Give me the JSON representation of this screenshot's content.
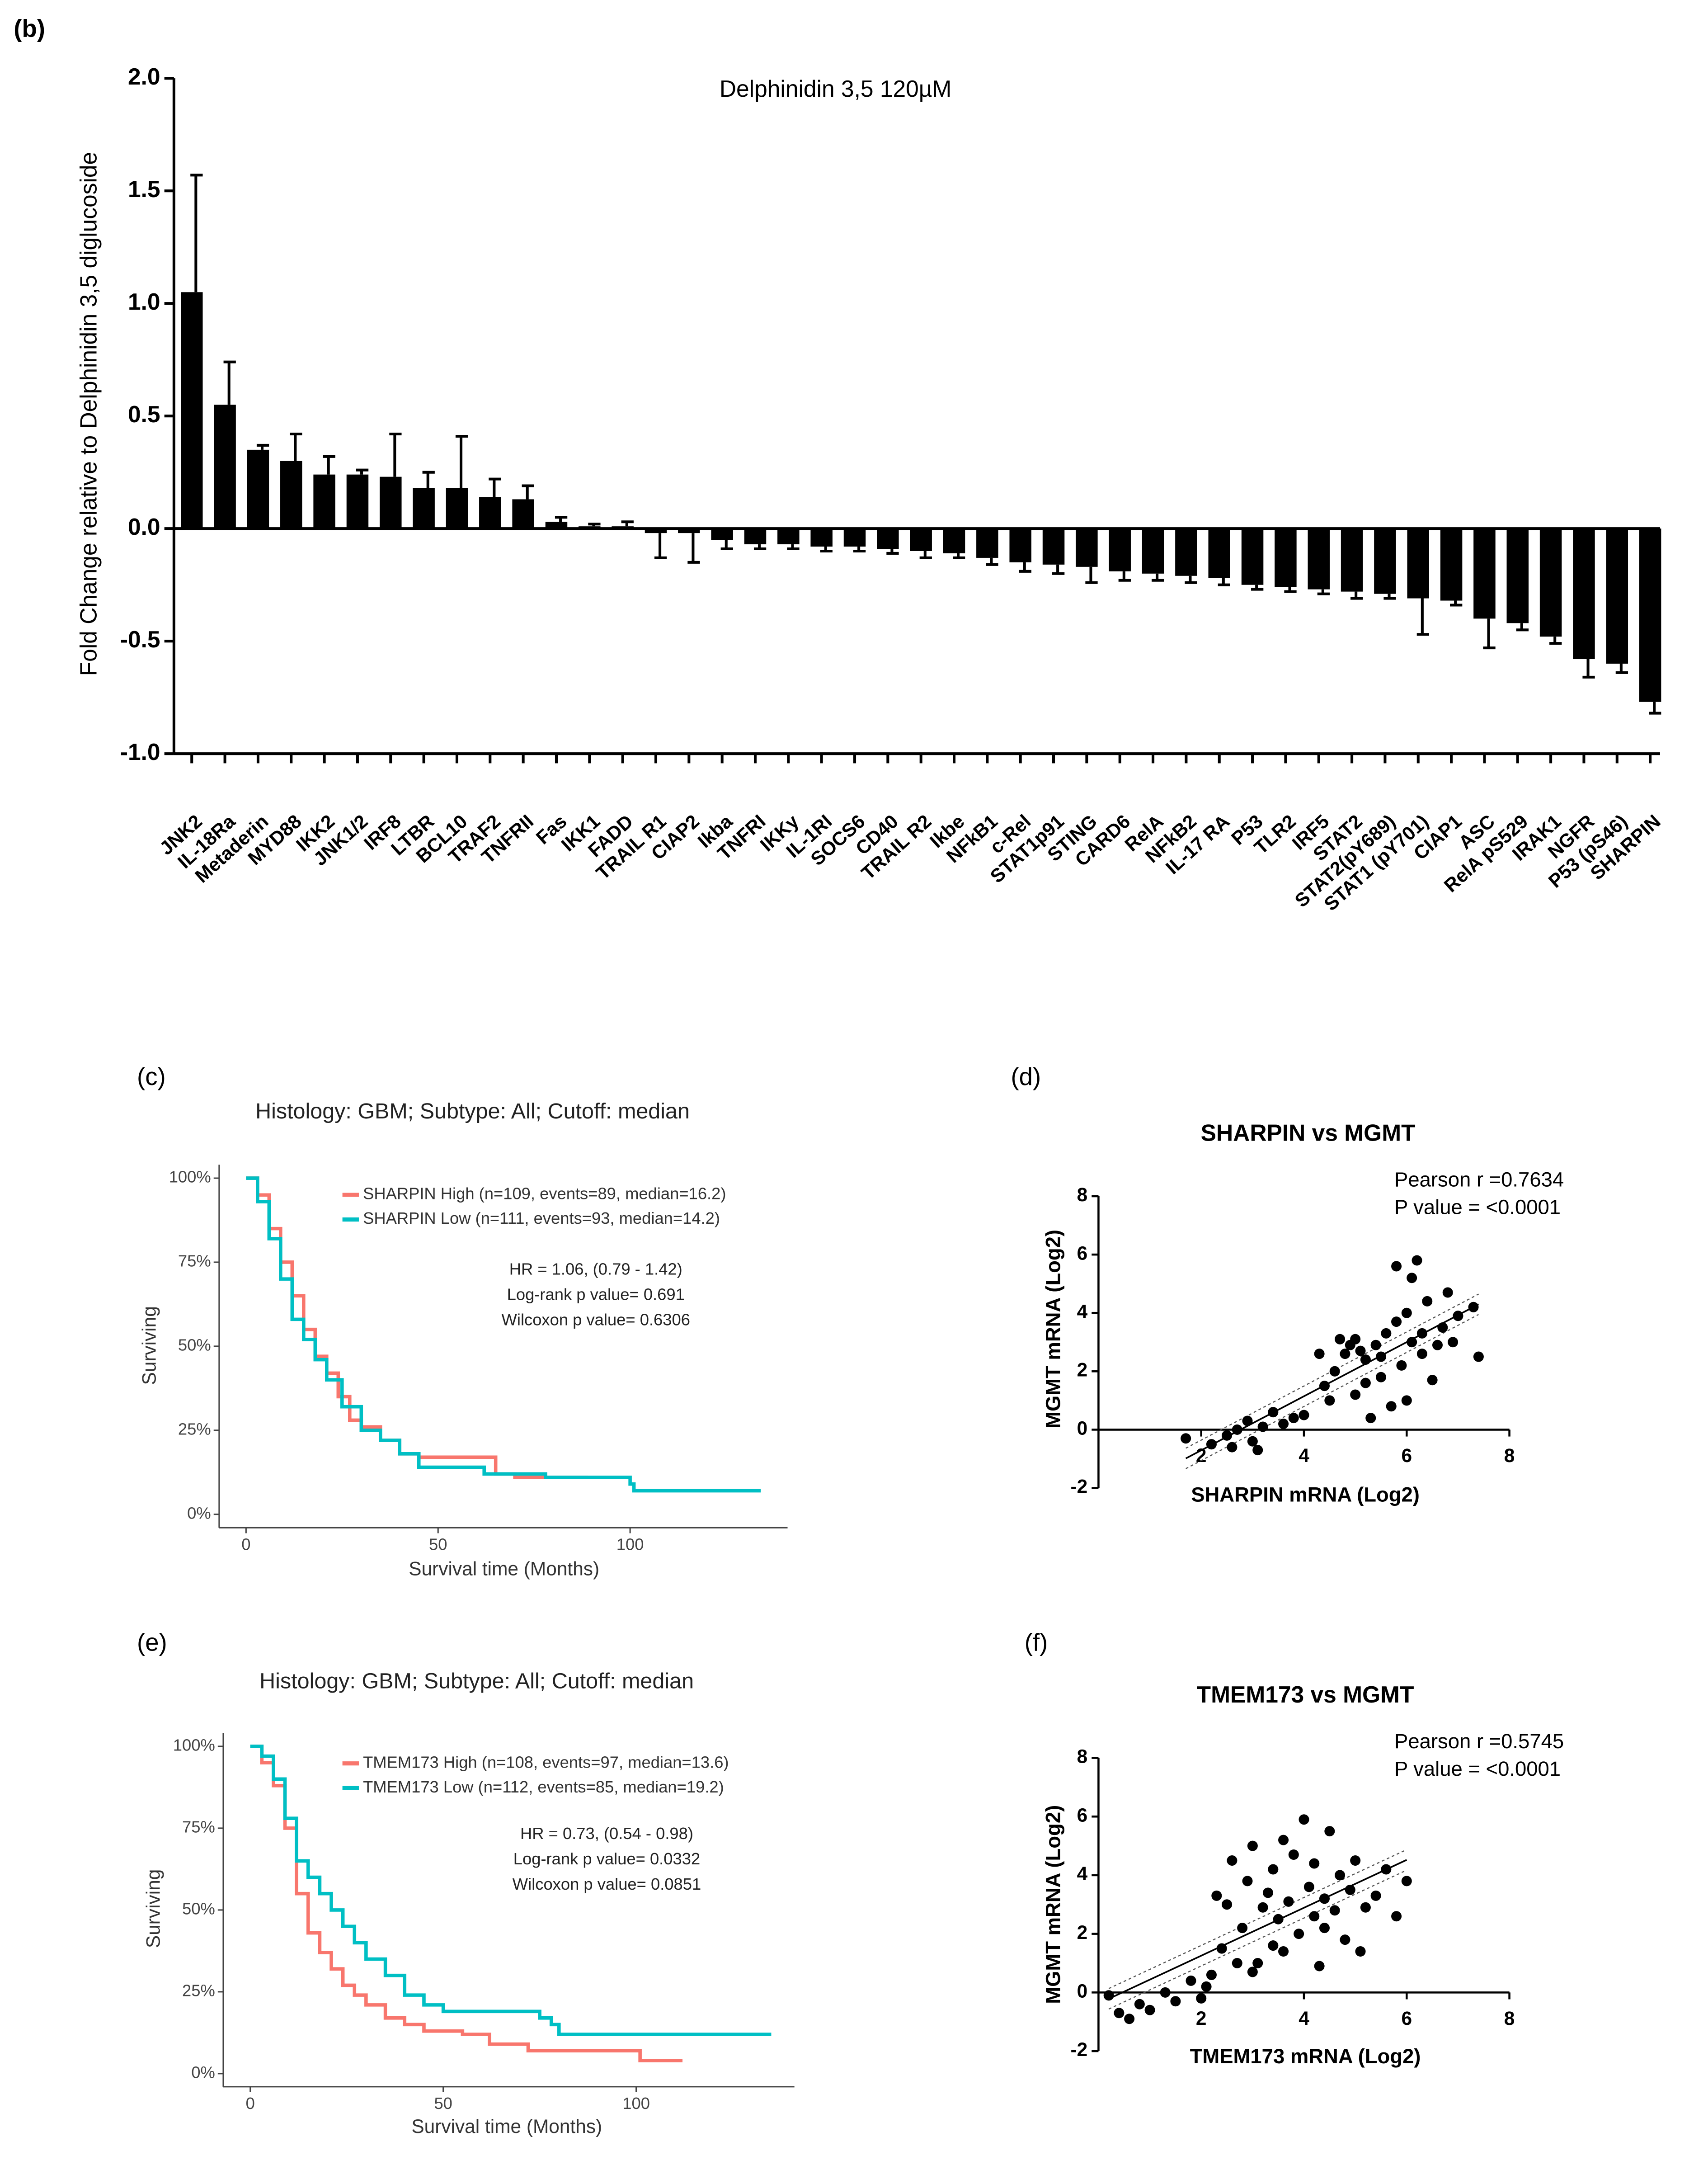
{
  "chart_data": [
    {
      "type": "bar",
      "label": "(b)",
      "title": "Delphinidin 3,5 120µM",
      "y_label": "Fold Change relative to Delphinidin 3,5 diglucoside",
      "categories": [
        "JNK2",
        "IL-18Ra",
        "Metaderin",
        "MYD88",
        "IKK2",
        "JNK1/2",
        "IRF8",
        "LTBR",
        "BCL10",
        "TRAF2",
        "TNFRII",
        "Fas",
        "IKK1",
        "FADD",
        "TRAIL R1",
        "CIAP2",
        "Ikba",
        "TNFRI",
        "IKKy",
        "IL-1RI",
        "SOCS6",
        "CD40",
        "TRAIL R2",
        "Ikbe",
        "NFkB1",
        "c-Rel",
        "STAT1p91",
        "STING",
        "CARD6",
        "RelA",
        "NFkB2",
        "IL-17 RA",
        "P53",
        "TLR2",
        "IRF5",
        "STAT2",
        "STAT2(pY689)",
        "STAT1 (pY701)",
        "CIAP1",
        "ASC",
        "RelA pS529",
        "IRAK1",
        "NGFR",
        "P53 (pS46)",
        "SHARPIN"
      ],
      "values": [
        1.05,
        0.55,
        0.35,
        0.3,
        0.24,
        0.24,
        0.23,
        0.18,
        0.18,
        0.14,
        0.13,
        0.03,
        0.01,
        0.01,
        -0.02,
        -0.02,
        -0.05,
        -0.07,
        -0.07,
        -0.08,
        -0.08,
        -0.09,
        -0.1,
        -0.11,
        -0.13,
        -0.15,
        -0.16,
        -0.17,
        -0.19,
        -0.2,
        -0.21,
        -0.22,
        -0.25,
        -0.26,
        -0.27,
        -0.28,
        -0.29,
        -0.31,
        -0.32,
        -0.4,
        -0.42,
        -0.48,
        -0.58,
        -0.6,
        -0.77
      ],
      "errors": [
        0.52,
        0.19,
        0.02,
        0.12,
        0.08,
        0.02,
        0.19,
        0.07,
        0.23,
        0.08,
        0.06,
        0.02,
        0.01,
        0.02,
        0.11,
        0.13,
        0.04,
        0.02,
        0.02,
        0.02,
        0.02,
        0.02,
        0.03,
        0.02,
        0.03,
        0.04,
        0.04,
        0.07,
        0.04,
        0.03,
        0.03,
        0.03,
        0.02,
        0.02,
        0.02,
        0.03,
        0.02,
        0.16,
        0.02,
        0.13,
        0.03,
        0.03,
        0.08,
        0.04,
        0.05
      ],
      "color": "#000000",
      "ylim": [
        -1,
        2
      ],
      "yticks": [
        {
          "value": -1,
          "label": "-1.0"
        },
        {
          "value": -0.5,
          "label": "-0.5"
        },
        {
          "value": 0,
          "label": "0.0"
        },
        {
          "value": 0.5,
          "label": "0.5"
        },
        {
          "value": 1,
          "label": "1.0"
        },
        {
          "value": 1.5,
          "label": "1.5"
        },
        {
          "value": 2,
          "label": "2.0"
        }
      ]
    },
    {
      "type": "step",
      "label": "(c)",
      "title": "Histology: GBM; Subtype: All; Cutoff: median",
      "x_label": "Survival time (Months)",
      "y_label": "Surviving",
      "annotations": [
        "HR = 1.06, (0.79 - 1.42)",
        "Log-rank p value= 0.691",
        "Wilcoxon p value= 0.6306"
      ],
      "xlim": [
        -7,
        141
      ],
      "xticks": [
        0,
        50,
        100
      ],
      "ylim": [
        -4,
        104
      ],
      "yticks": [
        {
          "value": 0,
          "label": "0%"
        },
        {
          "value": 25,
          "label": "25%"
        },
        {
          "value": 50,
          "label": "50%"
        },
        {
          "value": 75,
          "label": "75%"
        },
        {
          "value": 100,
          "label": "100%"
        }
      ],
      "series": [
        {
          "name": "SHARPIN High (n=109, events=89, median=16.2)",
          "color": "#f8766d",
          "x": [
            0,
            3,
            6,
            9,
            12,
            15,
            18,
            21,
            24,
            27,
            30,
            35,
            40,
            45,
            60,
            65,
            70,
            89
          ],
          "values": [
            100,
            95,
            85,
            75,
            65,
            55,
            47,
            42,
            35,
            28,
            26,
            22,
            18,
            17,
            17,
            12,
            11,
            11
          ]
        },
        {
          "name": "SHARPIN Low (n=111, events=93, median=14.2)",
          "color": "#00bfc4",
          "x": [
            0,
            3,
            6,
            9,
            12,
            15,
            18,
            21,
            25,
            30,
            35,
            40,
            45,
            60,
            62,
            78,
            100,
            101,
            134
          ],
          "values": [
            100,
            93,
            82,
            70,
            58,
            52,
            46,
            40,
            32,
            25,
            22,
            18,
            14,
            14,
            12,
            11,
            9,
            7,
            7
          ]
        }
      ]
    },
    {
      "type": "scatter",
      "label": "(d)",
      "title": "SHARPIN vs MGMT",
      "x_label": "SHARPIN mRNA (Log2)",
      "y_label": "MGMT mRNA (Log2)",
      "annotations": [
        "Pearson r =0.7634",
        "P value = <0.0001"
      ],
      "xlim": [
        0,
        8
      ],
      "xticks": [
        2,
        4,
        6,
        8
      ],
      "ylim": [
        -2,
        8
      ],
      "yticks": [
        -2,
        0,
        2,
        4,
        6,
        8
      ],
      "color": "#000000",
      "x": [
        1.7,
        2.2,
        2.5,
        2.7,
        2.9,
        3.0,
        3.2,
        2.6,
        3.4,
        3.6,
        3.1,
        4.0,
        4.4,
        4.6,
        4.8,
        5.0,
        5.2,
        5.4,
        5.0,
        5.5,
        5.6,
        5.8,
        5.9,
        6.0,
        6.1,
        6.2,
        6.4,
        6.3,
        6.5,
        6.7,
        6.8,
        7.0,
        7.4,
        7.3,
        5.3,
        5.7,
        4.9,
        5.1,
        6.6,
        6.0,
        5.5,
        4.3,
        4.7,
        6.9,
        5.8,
        6.3,
        5.2,
        6.1,
        4.5,
        3.8
      ],
      "values": [
        -0.3,
        -0.5,
        -0.2,
        0,
        0.3,
        -0.4,
        0.1,
        -0.6,
        0.6,
        0.2,
        -0.7,
        0.5,
        1.5,
        2.0,
        2.6,
        3.1,
        2.4,
        2.9,
        1.2,
        1.8,
        3.3,
        3.7,
        2.2,
        4.0,
        5.2,
        5.8,
        4.4,
        2.6,
        1.7,
        3.5,
        4.7,
        3.9,
        2.5,
        4.2,
        0.4,
        0.8,
        2.9,
        2.7,
        2.9,
        1.0,
        2.5,
        2.6,
        3.1,
        3.0,
        5.6,
        3.3,
        1.6,
        3.0,
        1.0,
        0.4
      ]
    },
    {
      "type": "step",
      "label": "(e)",
      "title": "Histology: GBM; Subtype: All; Cutoff: median",
      "x_label": "Survival time (Months)",
      "y_label": "Surviving",
      "annotations": [
        "HR = 0.73, (0.54 - 0.98)",
        "Log-rank p value= 0.0332",
        "Wilcoxon p value= 0.0851"
      ],
      "xlim": [
        -7,
        141
      ],
      "xticks": [
        0,
        50,
        100
      ],
      "ylim": [
        -4,
        104
      ],
      "yticks": [
        {
          "value": 0,
          "label": "0%"
        },
        {
          "value": 25,
          "label": "25%"
        },
        {
          "value": 50,
          "label": "50%"
        },
        {
          "value": 75,
          "label": "75%"
        },
        {
          "value": 100,
          "label": "100%"
        }
      ],
      "series": [
        {
          "name": "TMEM173 High (n=108, events=97, median=13.6)",
          "color": "#f8766d",
          "x": [
            0,
            3,
            6,
            9,
            12,
            15,
            18,
            21,
            24,
            27,
            30,
            35,
            40,
            45,
            55,
            62,
            72,
            100,
            101,
            112
          ],
          "values": [
            100,
            95,
            88,
            75,
            55,
            43,
            37,
            32,
            27,
            24,
            21,
            17,
            15,
            13,
            12,
            9,
            7,
            7,
            4,
            4
          ]
        },
        {
          "name": "TMEM173 Low (n=112, events=85, median=19.2)",
          "color": "#00bfc4",
          "x": [
            0,
            3,
            6,
            9,
            12,
            15,
            18,
            21,
            24,
            27,
            30,
            35,
            40,
            45,
            50,
            70,
            75,
            78,
            80,
            135
          ],
          "values": [
            100,
            97,
            90,
            78,
            65,
            60,
            55,
            50,
            45,
            40,
            35,
            30,
            24,
            21,
            19,
            19,
            17,
            15,
            12,
            12
          ]
        }
      ]
    },
    {
      "type": "scatter",
      "label": "(f)",
      "title": "TMEM173 vs MGMT",
      "x_label": "TMEM173 mRNA (Log2)",
      "y_label": "MGMT mRNA (Log2)",
      "annotations": [
        "Pearson r =0.5745",
        "P value = <0.0001"
      ],
      "xlim": [
        0,
        8
      ],
      "xticks": [
        2,
        4,
        6,
        8
      ],
      "ylim": [
        -2,
        8
      ],
      "yticks": [
        -2,
        0,
        2,
        4,
        6,
        8
      ],
      "color": "#000000",
      "x": [
        0.2,
        0.4,
        0.6,
        0.8,
        1.0,
        1.3,
        1.5,
        1.8,
        2.0,
        2.2,
        2.4,
        2.5,
        2.6,
        2.8,
        2.9,
        3.0,
        3.1,
        3.2,
        3.3,
        3.4,
        3.5,
        3.6,
        3.7,
        3.8,
        3.9,
        4.0,
        4.1,
        4.2,
        4.3,
        4.4,
        4.5,
        4.6,
        4.7,
        4.8,
        4.9,
        5.0,
        5.2,
        5.4,
        5.6,
        5.8,
        6.0,
        2.3,
        3.0,
        3.6,
        4.2,
        2.7,
        5.1,
        4.4,
        3.4,
        2.1
      ],
      "values": [
        -0.1,
        -0.7,
        -0.9,
        -0.4,
        -0.6,
        0,
        -0.3,
        0.4,
        -0.2,
        0.6,
        1.5,
        3.0,
        4.5,
        2.2,
        3.8,
        5.0,
        1.0,
        2.9,
        3.4,
        4.2,
        2.5,
        1.4,
        3.1,
        4.7,
        2.0,
        5.9,
        3.6,
        2.6,
        0.9,
        3.2,
        5.5,
        2.8,
        4.0,
        1.8,
        3.5,
        4.5,
        2.9,
        3.3,
        4.2,
        2.6,
        3.8,
        3.3,
        0.7,
        5.2,
        4.4,
        1.0,
        1.4,
        2.2,
        1.6,
        0.2
      ]
    }
  ]
}
